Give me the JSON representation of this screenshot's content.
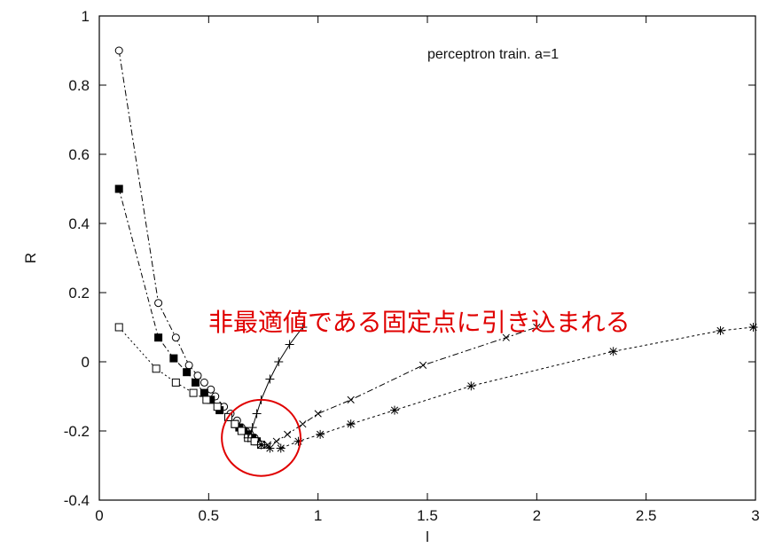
{
  "chart_data": {
    "type": "line",
    "title": "",
    "xlabel": "l",
    "ylabel": "R",
    "xlim": [
      0,
      3
    ],
    "ylim": [
      -0.4,
      1
    ],
    "x_ticks": [
      0,
      0.5,
      1,
      1.5,
      2,
      2.5,
      3
    ],
    "x_tick_labels": [
      "0",
      "0.5",
      "1",
      "1.5",
      "2",
      "2.5",
      "3"
    ],
    "y_ticks": [
      -0.4,
      -0.2,
      0,
      0.2,
      0.4,
      0.6,
      0.8,
      1
    ],
    "y_tick_labels": [
      "-0.4",
      "-0.2",
      "0",
      "0.2",
      "0.4",
      "0.6",
      "0.8",
      "1"
    ],
    "grid": false,
    "legend_text": "perceptron train. a=1",
    "annotation": {
      "text": "非最適値である固定点に引き込まれる",
      "color": "#e00000",
      "ellipse_center": [
        0.74,
        -0.22
      ],
      "ellipse_radius": [
        0.18,
        0.11
      ]
    },
    "series": [
      {
        "marker": "circle",
        "dash": "7,3,2,3",
        "x": [
          0.09,
          0.27,
          0.35,
          0.41,
          0.45,
          0.48,
          0.51,
          0.53,
          0.57,
          0.6,
          0.63,
          0.65,
          0.67,
          0.69,
          0.71
        ],
        "y": [
          0.9,
          0.17,
          0.07,
          -0.01,
          -0.04,
          -0.06,
          -0.08,
          -0.1,
          -0.13,
          -0.15,
          -0.17,
          -0.19,
          -0.2,
          -0.21,
          -0.22
        ]
      },
      {
        "marker": "filled-square",
        "dash": "6,3,2,3",
        "x": [
          0.09,
          0.27,
          0.34,
          0.4,
          0.44,
          0.48,
          0.51,
          0.55,
          0.59,
          0.62,
          0.64,
          0.66,
          0.68,
          0.7,
          0.72
        ],
        "y": [
          0.5,
          0.07,
          0.01,
          -0.03,
          -0.06,
          -0.09,
          -0.11,
          -0.14,
          -0.16,
          -0.18,
          -0.19,
          -0.2,
          -0.21,
          -0.22,
          -0.23
        ]
      },
      {
        "marker": "open-square",
        "dash": "2,3",
        "x": [
          0.09,
          0.26,
          0.35,
          0.43,
          0.49,
          0.54,
          0.59,
          0.62,
          0.65,
          0.68,
          0.71,
          0.74
        ],
        "y": [
          0.1,
          -0.02,
          -0.06,
          -0.09,
          -0.11,
          -0.13,
          -0.16,
          -0.18,
          -0.2,
          -0.22,
          -0.23,
          -0.24
        ]
      },
      {
        "marker": "plus",
        "dash": "",
        "x": [
          0.68,
          0.7,
          0.72,
          0.74,
          0.78,
          0.82,
          0.87,
          0.93
        ],
        "y": [
          -0.22,
          -0.19,
          -0.15,
          -0.11,
          -0.05,
          0.0,
          0.05,
          0.1
        ]
      },
      {
        "marker": "cross",
        "dash": "7,3,2,3",
        "x": [
          0.74,
          0.77,
          0.81,
          0.86,
          0.93,
          1.0,
          1.15,
          1.48,
          1.86,
          2.0
        ],
        "y": [
          -0.24,
          -0.24,
          -0.23,
          -0.21,
          -0.18,
          -0.15,
          -0.11,
          -0.01,
          0.07,
          0.1
        ]
      },
      {
        "marker": "star",
        "dash": "3,3",
        "x": [
          0.74,
          0.78,
          0.83,
          0.91,
          1.01,
          1.15,
          1.35,
          1.7,
          2.35,
          2.84,
          2.99
        ],
        "y": [
          -0.24,
          -0.25,
          -0.25,
          -0.23,
          -0.21,
          -0.18,
          -0.14,
          -0.07,
          0.03,
          0.09,
          0.1
        ]
      }
    ]
  }
}
